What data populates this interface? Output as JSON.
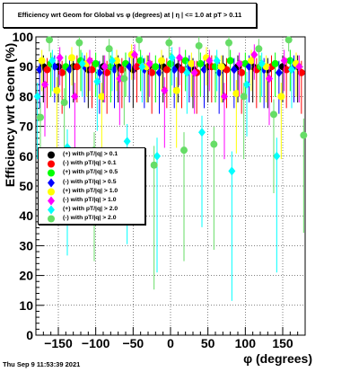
{
  "title": "Efficiency wrt Geom for Global vs φ (degrees) at | η | <= 1.0 at pT > 0.11",
  "timestamp": "Thu Sep  9 11:53:39 2021",
  "chart_data": {
    "type": "scatter",
    "xlabel": "φ (degrees)",
    "ylabel": "Efficiency wrt Geom (%)",
    "xlim": [
      -180,
      180
    ],
    "ylim": [
      0,
      100
    ],
    "xticks": [
      -150,
      -100,
      -50,
      0,
      50,
      100,
      150
    ],
    "yticks": [
      0,
      10,
      20,
      30,
      40,
      50,
      60,
      70,
      80,
      90,
      100
    ],
    "grid": true,
    "legend_position": "left-middle",
    "series": [
      {
        "name": "(+) with pT/|q| > 0.1",
        "color": "#000000",
        "marker": "circle",
        "x": [
          -170,
          -150,
          -130,
          -110,
          -90,
          -70,
          -50,
          -30,
          -10,
          10,
          30,
          50,
          70,
          90,
          110,
          130,
          150,
          170
        ],
        "y": [
          90,
          90,
          90,
          89,
          90,
          90,
          89,
          90,
          90,
          90,
          89,
          90,
          90,
          90,
          90,
          89,
          90,
          90
        ]
      },
      {
        "name": "(-) with pT/|q| > 0.1",
        "color": "#ff0000",
        "marker": "circle",
        "x": [
          -165,
          -145,
          -125,
          -105,
          -85,
          -65,
          -45,
          -25,
          -5,
          15,
          35,
          55,
          75,
          95,
          115,
          135,
          155,
          175
        ],
        "y": [
          89,
          88,
          90,
          89,
          88,
          89,
          90,
          88,
          89,
          89,
          88,
          90,
          89,
          88,
          89,
          90,
          89,
          88
        ]
      },
      {
        "name": "(+) with pT/|q| > 0.5",
        "color": "#00ff00",
        "marker": "circle",
        "x": [
          -160,
          -140,
          -120,
          -100,
          -80,
          -60,
          -40,
          -20,
          0,
          20,
          40,
          60,
          80,
          100,
          120,
          140,
          160
        ],
        "y": [
          91,
          90,
          92,
          91,
          90,
          91,
          92,
          90,
          91,
          92,
          91,
          90,
          92,
          91,
          90,
          91,
          92
        ]
      },
      {
        "name": "(-) with pT/|q| > 0.5",
        "color": "#0000ff",
        "marker": "diamond",
        "x": [
          -175,
          -155,
          -135,
          -115,
          -95,
          -75,
          -55,
          -35,
          -15,
          5,
          25,
          45,
          65,
          85,
          105,
          125,
          145,
          165
        ],
        "y": [
          89,
          90,
          89,
          90,
          88,
          89,
          90,
          89,
          88,
          89,
          90,
          89,
          88,
          89,
          90,
          89,
          88,
          90
        ]
      },
      {
        "name": "(+) with pT/|q| > 1.0",
        "color": "#ffff00",
        "marker": "circle",
        "x": [
          -172,
          -152,
          -132,
          -112,
          -92,
          -72,
          -52,
          -32,
          -12,
          8,
          28,
          48,
          68,
          88,
          108,
          128,
          148,
          168
        ],
        "y": [
          92,
          82,
          93,
          91,
          80,
          92,
          94,
          90,
          92,
          82,
          91,
          93,
          90,
          81,
          92,
          90,
          80,
          91
        ]
      },
      {
        "name": "(-) with pT/|q| > 1.0",
        "color": "#ff00ff",
        "marker": "diamond",
        "x": [
          -168,
          -148,
          -128,
          -108,
          -88,
          -68,
          -48,
          -28,
          -8,
          12,
          32,
          52,
          72,
          92,
          112,
          132,
          152,
          172
        ],
        "y": [
          84,
          93,
          80,
          92,
          90,
          86,
          94,
          91,
          82,
          93,
          88,
          92,
          80,
          91,
          94,
          86,
          92,
          90
        ]
      },
      {
        "name": "(+) with pT/|q| > 2.0",
        "color": "#00ffff",
        "marker": "diamond",
        "x": [
          -178,
          -158,
          -138,
          -118,
          -98,
          -78,
          -58,
          -38,
          -18,
          2,
          22,
          42,
          62,
          82,
          102,
          122,
          142,
          162
        ],
        "y": [
          80,
          92,
          63,
          91,
          85,
          92,
          65,
          90,
          60,
          93,
          88,
          68,
          92,
          55,
          84,
          91,
          60,
          89
        ]
      },
      {
        "name": "(-) with pT/|q| > 2.0",
        "color": "#66dd66",
        "marker": "circle",
        "x": [
          -174,
          -162,
          -142,
          -122,
          -102,
          -82,
          -62,
          -42,
          -22,
          -2,
          18,
          38,
          58,
          78,
          98,
          118,
          138,
          158,
          178
        ],
        "y": [
          73,
          99,
          78,
          98,
          62,
          96,
          86,
          99,
          57,
          98,
          62,
          97,
          64,
          98,
          80,
          96,
          74,
          99,
          67
        ]
      }
    ]
  }
}
